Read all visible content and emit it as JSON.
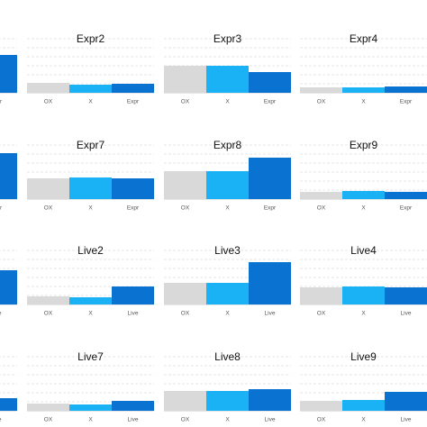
{
  "chart_data": [
    {
      "type": "bar",
      "categories": [
        "Expr"
      ],
      "values": [
        42
      ],
      "colors": [
        "#0a72d0"
      ],
      "ylim": [
        0,
        60
      ],
      "yticks": [
        0,
        10,
        20,
        30,
        40,
        50,
        60
      ],
      "grid": true
    },
    {
      "type": "bar",
      "title": "Expr2",
      "categories": [
        "OX",
        "X",
        "Expr"
      ],
      "values": [
        11,
        9,
        10
      ],
      "colors": [
        "#d9d9d9",
        "#1ab2f5",
        "#0a72d0"
      ],
      "ylim": [
        0,
        60
      ],
      "yticks": [
        0,
        10,
        20,
        30,
        40,
        50,
        60
      ],
      "grid": true
    },
    {
      "type": "bar",
      "title": "Expr3",
      "categories": [
        "OX",
        "X",
        "Expr"
      ],
      "values": [
        30,
        30,
        23
      ],
      "colors": [
        "#d9d9d9",
        "#1ab2f5",
        "#0a72d0"
      ],
      "ylim": [
        0,
        60
      ],
      "yticks": [
        0,
        10,
        20,
        30,
        40,
        50,
        60
      ],
      "grid": true
    },
    {
      "type": "bar",
      "title": "Expr4",
      "categories": [
        "OX",
        "X",
        "Expr"
      ],
      "values": [
        6,
        6,
        7
      ],
      "colors": [
        "#d9d9d9",
        "#1ab2f5",
        "#0a72d0"
      ],
      "ylim": [
        0,
        60
      ],
      "yticks": [
        0,
        10,
        20,
        30,
        40,
        50,
        60
      ],
      "grid": true
    },
    {
      "type": "bar",
      "categories": [
        "Expr"
      ],
      "values": [
        51
      ],
      "colors": [
        "#0a72d0"
      ],
      "ylim": [
        0,
        60
      ],
      "yticks": [
        0,
        10,
        20,
        30,
        40,
        50,
        60
      ],
      "grid": true
    },
    {
      "type": "bar",
      "title": "Expr7",
      "categories": [
        "OX",
        "X",
        "Expr"
      ],
      "values": [
        23,
        24,
        23
      ],
      "colors": [
        "#d9d9d9",
        "#1ab2f5",
        "#0a72d0"
      ],
      "ylim": [
        0,
        60
      ],
      "yticks": [
        0,
        10,
        20,
        30,
        40,
        50,
        60
      ],
      "grid": true
    },
    {
      "type": "bar",
      "title": "Expr8",
      "categories": [
        "OX",
        "X",
        "Expr"
      ],
      "values": [
        31,
        31,
        46
      ],
      "colors": [
        "#d9d9d9",
        "#1ab2f5",
        "#0a72d0"
      ],
      "ylim": [
        0,
        60
      ],
      "yticks": [
        0,
        10,
        20,
        30,
        40,
        50,
        60
      ],
      "grid": true
    },
    {
      "type": "bar",
      "title": "Expr9",
      "categories": [
        "OX",
        "X",
        "Expr"
      ],
      "values": [
        8,
        9,
        8
      ],
      "colors": [
        "#d9d9d9",
        "#1ab2f5",
        "#0a72d0"
      ],
      "ylim": [
        0,
        60
      ],
      "yticks": [
        0,
        10,
        20,
        30,
        40,
        50,
        60
      ],
      "grid": true
    },
    {
      "type": "bar",
      "categories": [
        "Live"
      ],
      "values": [
        38
      ],
      "colors": [
        "#0a72d0"
      ],
      "ylim": [
        0,
        60
      ],
      "yticks": [
        0,
        10,
        20,
        30,
        40,
        50,
        60
      ],
      "grid": true
    },
    {
      "type": "bar",
      "title": "Live2",
      "categories": [
        "OX",
        "X",
        "Live"
      ],
      "values": [
        9,
        8,
        20
      ],
      "colors": [
        "#d9d9d9",
        "#1ab2f5",
        "#0a72d0"
      ],
      "ylim": [
        0,
        60
      ],
      "yticks": [
        0,
        10,
        20,
        30,
        40,
        50,
        60
      ],
      "grid": true
    },
    {
      "type": "bar",
      "title": "Live3",
      "categories": [
        "OX",
        "X",
        "Live"
      ],
      "values": [
        24,
        24,
        47
      ],
      "colors": [
        "#d9d9d9",
        "#1ab2f5",
        "#0a72d0"
      ],
      "ylim": [
        0,
        60
      ],
      "yticks": [
        0,
        10,
        20,
        30,
        40,
        50,
        60
      ],
      "grid": true
    },
    {
      "type": "bar",
      "title": "Live4",
      "categories": [
        "OX",
        "X",
        "Live"
      ],
      "values": [
        19,
        20,
        19
      ],
      "colors": [
        "#d9d9d9",
        "#1ab2f5",
        "#0a72d0"
      ],
      "ylim": [
        0,
        60
      ],
      "yticks": [
        0,
        10,
        20,
        30,
        40,
        50,
        60
      ],
      "grid": true
    },
    {
      "type": "bar",
      "categories": [
        "Live"
      ],
      "values": [
        14
      ],
      "colors": [
        "#0a72d0"
      ],
      "ylim": [
        0,
        60
      ],
      "yticks": [
        0,
        10,
        20,
        30,
        40,
        50,
        60
      ],
      "grid": true
    },
    {
      "type": "bar",
      "title": "Live7",
      "categories": [
        "OX",
        "X",
        "Live"
      ],
      "values": [
        8,
        7,
        11
      ],
      "colors": [
        "#d9d9d9",
        "#1ab2f5",
        "#0a72d0"
      ],
      "ylim": [
        0,
        60
      ],
      "yticks": [
        0,
        10,
        20,
        30,
        40,
        50,
        60
      ],
      "grid": true
    },
    {
      "type": "bar",
      "title": "Live8",
      "categories": [
        "OX",
        "X",
        "Live"
      ],
      "values": [
        22,
        22,
        24
      ],
      "colors": [
        "#d9d9d9",
        "#1ab2f5",
        "#0a72d0"
      ],
      "ylim": [
        0,
        60
      ],
      "yticks": [
        0,
        10,
        20,
        30,
        40,
        50,
        60
      ],
      "grid": true
    },
    {
      "type": "bar",
      "title": "Live9",
      "categories": [
        "OX",
        "X",
        "Live"
      ],
      "values": [
        11,
        12,
        21
      ],
      "colors": [
        "#d9d9d9",
        "#1ab2f5",
        "#0a72d0"
      ],
      "ylim": [
        0,
        60
      ],
      "yticks": [
        0,
        10,
        20,
        30,
        40,
        50,
        60
      ],
      "grid": true
    }
  ]
}
